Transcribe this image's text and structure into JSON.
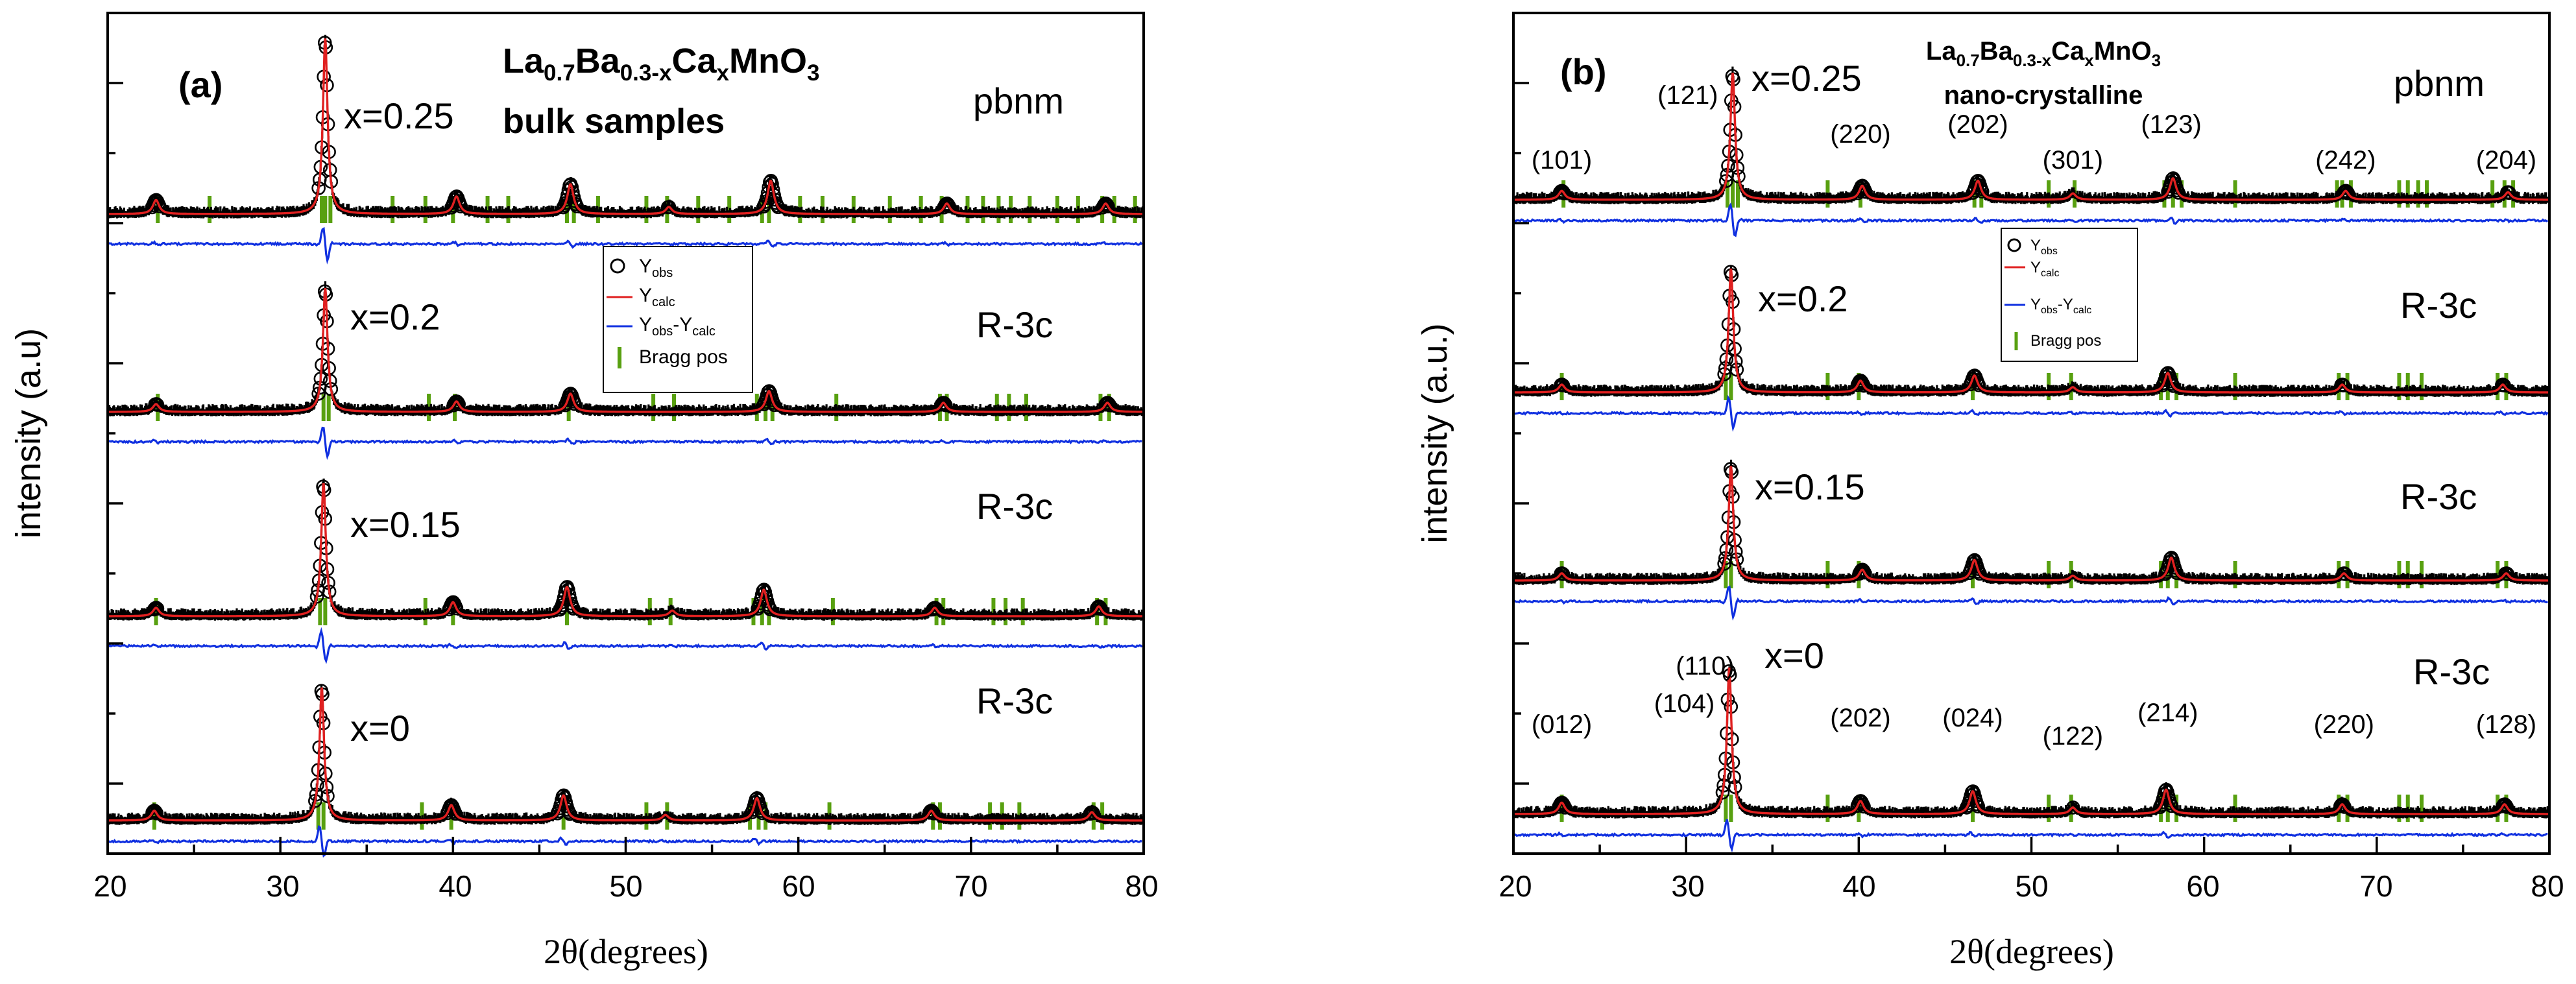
{
  "chart_data": [
    {
      "type": "scatter",
      "panel": "(a)",
      "title_parts": {
        "base": "La",
        "s1": "0.7",
        "b2": "Ba",
        "s2": "0.3-x",
        "b3": "Ca",
        "s3": "x",
        "b4": "MnO",
        "s4": "3"
      },
      "subtitle": "bulk samples",
      "xlabel": "2θ(degrees)",
      "ylabel": "intensity (a.u)",
      "xlim": [
        20,
        80
      ],
      "xticks": [
        "20",
        "30",
        "40",
        "50",
        "60",
        "70",
        "80"
      ],
      "legend": [
        {
          "symbol": "circle",
          "label_base": "Y",
          "label_sub": "obs"
        },
        {
          "symbol": "line-red",
          "label_base": "Y",
          "label_sub": "calc"
        },
        {
          "symbol": "line-blue",
          "label_base": "Y",
          "label_sub": "obs",
          "label_mid": "-Y",
          "label_sub2": "calc"
        },
        {
          "symbol": "bar-green",
          "label_base": "Bragg pos"
        }
      ],
      "series": [
        {
          "name": "x=0.25",
          "phase": "pbnm",
          "peaks": [
            [
              22.8,
              0.08
            ],
            [
              32.6,
              1.0
            ],
            [
              40.2,
              0.1
            ],
            [
              46.8,
              0.17
            ],
            [
              52.5,
              0.04
            ],
            [
              58.4,
              0.19
            ],
            [
              68.6,
              0.06
            ],
            [
              77.8,
              0.06
            ]
          ],
          "bragg": [
            22.9,
            25.9,
            32.4,
            32.6,
            32.9,
            36.5,
            38.4,
            40.0,
            42.0,
            43.2,
            46.6,
            47.0,
            48.4,
            51.2,
            52.4,
            54.2,
            56.0,
            57.9,
            58.3,
            60.1,
            61.4,
            63.2,
            65.3,
            67.1,
            68.3,
            69.8,
            70.7,
            71.6,
            72.3,
            73.4,
            75.0,
            76.2,
            77.6,
            78.3,
            79.5
          ]
        },
        {
          "name": "x=0.2",
          "phase": "R-3c",
          "peaks": [
            [
              22.8,
              0.06
            ],
            [
              32.6,
              0.95
            ],
            [
              40.2,
              0.08
            ],
            [
              46.8,
              0.14
            ],
            [
              58.3,
              0.16
            ],
            [
              68.4,
              0.07
            ],
            [
              77.9,
              0.07
            ]
          ],
          "bragg": [
            22.9,
            32.5,
            32.8,
            38.6,
            40.1,
            46.7,
            51.6,
            52.8,
            57.6,
            58.1,
            58.5,
            62.2,
            68.2,
            68.6,
            71.5,
            72.2,
            73.2,
            77.5,
            78.0
          ]
        },
        {
          "name": "x=0.15",
          "phase": "R-3c",
          "peaks": [
            [
              22.8,
              0.06
            ],
            [
              32.5,
              0.95
            ],
            [
              40.0,
              0.1
            ],
            [
              46.6,
              0.21
            ],
            [
              52.7,
              0.04
            ],
            [
              58.0,
              0.19
            ],
            [
              67.9,
              0.06
            ],
            [
              77.4,
              0.07
            ]
          ],
          "bragg": [
            22.8,
            32.3,
            32.6,
            38.4,
            40.0,
            46.6,
            51.4,
            52.6,
            57.4,
            57.9,
            58.3,
            62.0,
            68.0,
            68.4,
            71.3,
            72.0,
            73.0,
            77.3,
            77.8
          ]
        },
        {
          "name": "x=0",
          "phase": "R-3c",
          "peaks": [
            [
              22.7,
              0.07
            ],
            [
              32.4,
              0.95
            ],
            [
              39.9,
              0.11
            ],
            [
              46.4,
              0.18
            ],
            [
              52.3,
              0.04
            ],
            [
              57.6,
              0.16
            ],
            [
              67.7,
              0.07
            ],
            [
              77.0,
              0.06
            ]
          ],
          "bragg": [
            22.7,
            32.2,
            32.5,
            38.2,
            39.9,
            46.4,
            51.2,
            52.4,
            57.2,
            57.7,
            58.1,
            61.8,
            67.8,
            68.2,
            71.1,
            71.8,
            72.8,
            77.1,
            77.6
          ]
        }
      ]
    },
    {
      "type": "scatter",
      "panel": "(b)",
      "title_parts": {
        "base": "La",
        "s1": "0.7",
        "b2": "Ba",
        "s2": "0.3-x",
        "b3": "Ca",
        "s3": "x",
        "b4": "MnO",
        "s4": "3"
      },
      "subtitle": "nano-crystalline",
      "xlabel": "2θ(degrees)",
      "ylabel": "intensity (a.u.)",
      "xlim": [
        20,
        80
      ],
      "xticks": [
        "20",
        "30",
        "40",
        "50",
        "60",
        "70",
        "80"
      ],
      "legend": [
        {
          "symbol": "circle",
          "label_base": "Y",
          "label_sub": "obs"
        },
        {
          "symbol": "line-red",
          "label_base": "Y",
          "label_sub": "calc"
        },
        {
          "symbol": "line-blue",
          "label_base": "Y",
          "label_sub": "obs",
          "label_mid": "-Y",
          "label_sub2": "calc"
        },
        {
          "symbol": "bar-green",
          "label_base": "Bragg pos"
        }
      ],
      "hkl_top": [
        {
          "label": "(101)",
          "x": 22.8
        },
        {
          "label": "(121)",
          "x": 30.1
        },
        {
          "label": "(220)",
          "x": 40.1
        },
        {
          "label": "(202)",
          "x": 46.9
        },
        {
          "label": "(301)",
          "x": 52.4
        },
        {
          "label": "(123)",
          "x": 58.1
        },
        {
          "label": "(242)",
          "x": 68.2
        },
        {
          "label": "(204)",
          "x": 77.5
        }
      ],
      "hkl_bottom": [
        {
          "label": "(012)",
          "x": 22.8
        },
        {
          "label": "(110)",
          "x": 31.1
        },
        {
          "label": "(104)",
          "x": 29.9
        },
        {
          "label": "(202)",
          "x": 40.1
        },
        {
          "label": "(024)",
          "x": 46.6
        },
        {
          "label": "(122)",
          "x": 52.4
        },
        {
          "label": "(214)",
          "x": 57.9
        },
        {
          "label": "(220)",
          "x": 68.1
        },
        {
          "label": "(128)",
          "x": 77.5
        }
      ],
      "series": [
        {
          "name": "x=0.25",
          "phase": "pbnm",
          "peaks": [
            [
              22.8,
              0.07
            ],
            [
              32.7,
              1.0
            ],
            [
              40.2,
              0.11
            ],
            [
              46.9,
              0.15
            ],
            [
              52.4,
              0.05
            ],
            [
              58.2,
              0.17
            ],
            [
              68.2,
              0.07
            ],
            [
              77.6,
              0.06
            ]
          ],
          "bragg": [
            22.9,
            32.4,
            32.7,
            33.0,
            38.2,
            40.1,
            46.7,
            47.1,
            51.0,
            52.5,
            57.7,
            58.2,
            58.7,
            61.8,
            67.7,
            68.0,
            68.5,
            71.3,
            71.8,
            72.4,
            72.9,
            76.7,
            77.4,
            77.9
          ]
        },
        {
          "name": "x=0.2",
          "phase": "R-3c",
          "peaks": [
            [
              22.8,
              0.06
            ],
            [
              32.6,
              0.95
            ],
            [
              40.1,
              0.09
            ],
            [
              46.7,
              0.13
            ],
            [
              52.4,
              0.04
            ],
            [
              57.9,
              0.15
            ],
            [
              68.0,
              0.06
            ],
            [
              77.3,
              0.06
            ]
          ],
          "bragg": [
            22.8,
            32.3,
            32.6,
            38.2,
            40.0,
            46.6,
            51.0,
            52.3,
            57.5,
            57.9,
            58.4,
            61.8,
            67.8,
            68.3,
            71.3,
            71.8,
            72.6,
            77.0,
            77.5
          ]
        },
        {
          "name": "x=0.15",
          "phase": "R-3c",
          "peaks": [
            [
              22.8,
              0.06
            ],
            [
              32.6,
              0.95
            ],
            [
              40.2,
              0.09
            ],
            [
              46.7,
              0.17
            ],
            [
              52.4,
              0.04
            ],
            [
              58.1,
              0.19
            ],
            [
              68.1,
              0.06
            ],
            [
              77.5,
              0.06
            ]
          ],
          "bragg": [
            22.8,
            32.3,
            32.6,
            38.2,
            40.0,
            46.6,
            51.0,
            52.3,
            57.5,
            57.9,
            58.4,
            61.8,
            67.8,
            68.3,
            71.3,
            71.8,
            72.6,
            77.0,
            77.5
          ]
        },
        {
          "name": "x=0",
          "phase": "R-3c",
          "peaks": [
            [
              22.8,
              0.07
            ],
            [
              32.5,
              0.9
            ],
            [
              40.1,
              0.08
            ],
            [
              46.6,
              0.14
            ],
            [
              52.4,
              0.04
            ],
            [
              57.8,
              0.15
            ],
            [
              68.0,
              0.06
            ],
            [
              77.4,
              0.06
            ]
          ],
          "bragg": [
            22.8,
            32.3,
            32.6,
            38.2,
            40.0,
            46.6,
            51.0,
            52.3,
            57.5,
            57.9,
            58.4,
            61.8,
            67.8,
            68.3,
            71.3,
            71.8,
            72.6,
            77.0,
            77.5
          ]
        }
      ]
    }
  ],
  "colors": {
    "observed": "#000000",
    "calculated": "#e02020",
    "difference": "#1030e0",
    "bragg": "#58a010"
  }
}
